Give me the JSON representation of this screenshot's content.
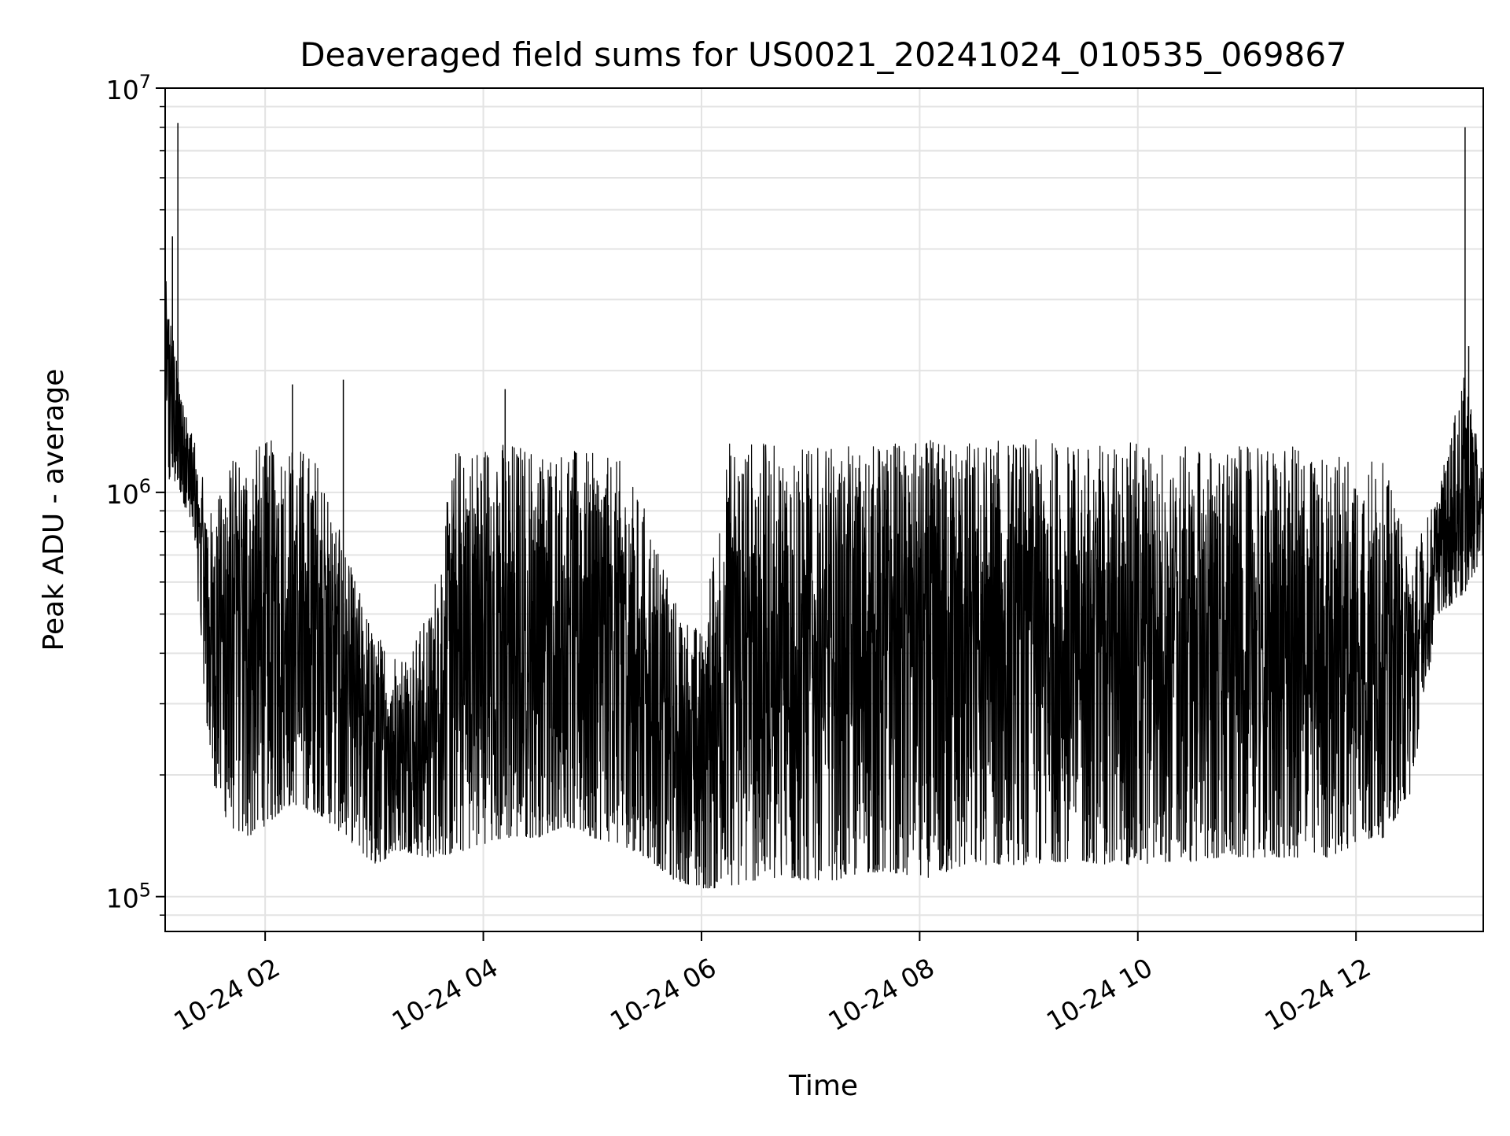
{
  "chart_data": {
    "type": "line",
    "title": "Deaveraged field sums for US0021_20241024_010535_069867",
    "xlabel": "Time",
    "ylabel": "Peak ADU - average",
    "yscale": "log",
    "ylim": [
      82000,
      10000000
    ],
    "xlim": [
      "2024-10-24 01:05",
      "2024-10-24 13:10"
    ],
    "grid": true,
    "line_color": "#000000",
    "x_ticks": [
      {
        "label": "10-24 02",
        "value": "2024-10-24 02:00"
      },
      {
        "label": "10-24 04",
        "value": "2024-10-24 04:00"
      },
      {
        "label": "10-24 06",
        "value": "2024-10-24 06:00"
      },
      {
        "label": "10-24 08",
        "value": "2024-10-24 08:00"
      },
      {
        "label": "10-24 10",
        "value": "2024-10-24 10:00"
      },
      {
        "label": "10-24 12",
        "value": "2024-10-24 12:00"
      }
    ],
    "y_ticks": [
      {
        "base": "10",
        "exp": "5",
        "value": 100000
      },
      {
        "base": "10",
        "exp": "6",
        "value": 1000000
      },
      {
        "base": "10",
        "exp": "7",
        "value": 10000000
      }
    ],
    "series": [
      {
        "x": [
          "2024-10-24 01:05",
          "2024-10-24 01:12",
          "2024-10-24 01:20",
          "2024-10-24 01:30",
          "2024-10-24 01:40",
          "2024-10-24 01:50",
          "2024-10-24 02:00",
          "2024-10-24 02:15",
          "2024-10-24 02:30",
          "2024-10-24 02:45",
          "2024-10-24 03:00",
          "2024-10-24 03:15",
          "2024-10-24 03:30",
          "2024-10-24 03:45",
          "2024-10-24 04:00",
          "2024-10-24 04:15",
          "2024-10-24 04:30",
          "2024-10-24 04:45",
          "2024-10-24 05:00",
          "2024-10-24 05:15",
          "2024-10-24 05:30",
          "2024-10-24 05:45",
          "2024-10-24 06:00",
          "2024-10-24 06:15",
          "2024-10-24 06:30",
          "2024-10-24 06:45",
          "2024-10-24 07:00",
          "2024-10-24 07:15",
          "2024-10-24 07:30",
          "2024-10-24 07:45",
          "2024-10-24 08:00",
          "2024-10-24 08:15",
          "2024-10-24 08:30",
          "2024-10-24 08:45",
          "2024-10-24 09:00",
          "2024-10-24 09:15",
          "2024-10-24 09:30",
          "2024-10-24 09:45",
          "2024-10-24 10:00",
          "2024-10-24 10:15",
          "2024-10-24 10:30",
          "2024-10-24 10:45",
          "2024-10-24 11:00",
          "2024-10-24 11:15",
          "2024-10-24 11:30",
          "2024-10-24 11:45",
          "2024-10-24 12:00",
          "2024-10-24 12:15",
          "2024-10-24 12:30",
          "2024-10-24 12:45",
          "2024-10-24 13:00",
          "2024-10-24 13:10"
        ],
        "low": [
          1050000,
          1050000,
          800000,
          200000,
          150000,
          140000,
          150000,
          170000,
          160000,
          140000,
          120000,
          130000,
          125000,
          128000,
          135000,
          140000,
          140000,
          150000,
          140000,
          135000,
          125000,
          110000,
          105000,
          105000,
          110000,
          110000,
          110000,
          110000,
          115000,
          115000,
          110000,
          115000,
          120000,
          120000,
          120000,
          122000,
          122000,
          120000,
          120000,
          122000,
          122000,
          125000,
          125000,
          125000,
          125000,
          125000,
          135000,
          140000,
          180000,
          500000,
          560000,
          700000
        ],
        "high": [
          3500000,
          2000000,
          1400000,
          900000,
          1200000,
          1300000,
          1350000,
          1350000,
          1200000,
          700000,
          450000,
          400000,
          500000,
          1300000,
          1350000,
          1350000,
          1300000,
          1300000,
          1250000,
          1200000,
          900000,
          550000,
          450000,
          1350000,
          1350000,
          1300000,
          1300000,
          1300000,
          1300000,
          1350000,
          1350000,
          1350000,
          1350000,
          1350000,
          1350000,
          1350000,
          1300000,
          1350000,
          1350000,
          1300000,
          1300000,
          1300000,
          1300000,
          1300000,
          1300000,
          1250000,
          1250000,
          1200000,
          700000,
          1000000,
          2000000,
          1100000
        ]
      }
    ]
  }
}
